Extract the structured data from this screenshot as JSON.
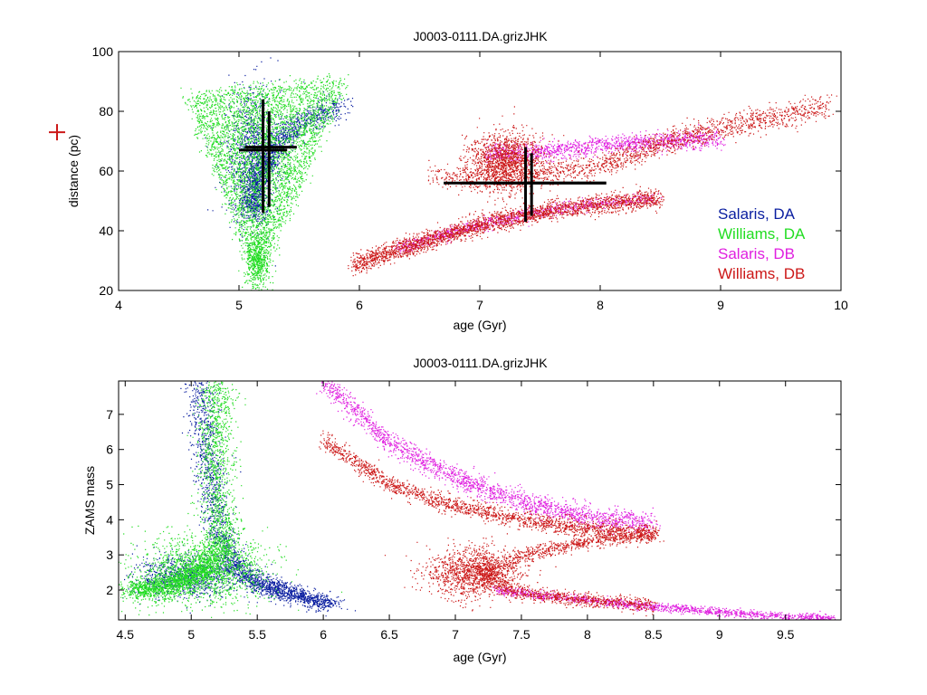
{
  "chart_data": [
    {
      "type": "scatter",
      "title": "J0003-0111.DA.grizJHK",
      "xlabel": "age (Gyr)",
      "ylabel": "distance (pc)",
      "xlim": [
        4,
        10
      ],
      "ylim": [
        20,
        100
      ],
      "xticks": [
        4,
        5,
        6,
        7,
        8,
        9,
        10
      ],
      "yticks": [
        20,
        40,
        60,
        80,
        100
      ],
      "grid": false,
      "legend_position": "bottom-right",
      "series": [
        {
          "name": "Salaris, DA",
          "color": "#0a1ea0",
          "clouds": [
            {
              "kind": "path",
              "pts": [
                [
                  5.1,
                  45
                ],
                [
                  5.15,
                  58
                ],
                [
                  5.3,
                  70
                ],
                [
                  5.55,
                  77
                ],
                [
                  5.85,
                  82
                ]
              ],
              "spread": [
                0.06,
                2.0
              ],
              "n": 1600
            },
            {
              "kind": "blob",
              "cx": 5.1,
              "cy": 66,
              "sx": 0.12,
              "sy": 11,
              "n": 900
            }
          ]
        },
        {
          "name": "Williams, DA",
          "color": "#22dd22",
          "clouds": [
            {
              "kind": "fan",
              "tip": [
                5.15,
                23
              ],
              "left": [
                4.55,
                86
              ],
              "right": [
                5.9,
                91
              ],
              "n": 4200
            },
            {
              "kind": "blob",
              "cx": 5.15,
              "cy": 30,
              "sx": 0.05,
              "sy": 5,
              "n": 500
            }
          ]
        },
        {
          "name": "Salaris, DB",
          "color": "#e020e0",
          "clouds": [
            {
              "kind": "path",
              "pts": [
                [
                  7.05,
                  66
                ],
                [
                  7.5,
                  66.5
                ],
                [
                  8.0,
                  68.5
                ],
                [
                  8.5,
                  70
                ],
                [
                  9.0,
                  71
                ]
              ],
              "spread": [
                0.03,
                1.5
              ],
              "n": 1300
            },
            {
              "kind": "path",
              "pts": [
                [
                  6.3,
                  34
                ],
                [
                  6.8,
                  40
                ],
                [
                  7.3,
                  45
                ],
                [
                  7.9,
                  49
                ],
                [
                  8.45,
                  51
                ]
              ],
              "spread": [
                0.03,
                1.0
              ],
              "n": 900
            }
          ]
        },
        {
          "name": "Williams, DB",
          "color": "#cc1818",
          "clouds": [
            {
              "kind": "path",
              "pts": [
                [
                  5.95,
                  29
                ],
                [
                  6.4,
                  35
                ],
                [
                  7.0,
                  42
                ],
                [
                  7.6,
                  47
                ],
                [
                  8.2,
                  50
                ],
                [
                  8.5,
                  51
                ]
              ],
              "spread": [
                0.03,
                1.6
              ],
              "n": 2600
            },
            {
              "kind": "path",
              "pts": [
                [
                  6.6,
                  58
                ],
                [
                  7.3,
                  58
                ],
                [
                  8.0,
                  62
                ],
                [
                  8.7,
                  72
                ],
                [
                  9.3,
                  77
                ],
                [
                  9.9,
                  82
                ]
              ],
              "spread": [
                0.03,
                2.0
              ],
              "n": 1700
            },
            {
              "kind": "blob",
              "cx": 7.2,
              "cy": 63,
              "sx": 0.15,
              "sy": 5,
              "n": 1400
            }
          ]
        }
      ],
      "error_crosses": [
        {
          "x": 5.2,
          "y": 67,
          "xerr": [
            5.0,
            5.4
          ],
          "yerr": [
            46,
            84
          ]
        },
        {
          "x": 5.25,
          "y": 68,
          "xerr": [
            5.05,
            5.48
          ],
          "yerr": [
            48,
            80
          ]
        },
        {
          "x": 7.38,
          "y": 56,
          "xerr": [
            6.7,
            8.05
          ],
          "yerr": [
            43,
            68
          ]
        },
        {
          "x": 7.43,
          "y": 56,
          "xerr": [
            6.85,
            8.05
          ],
          "yerr": [
            45,
            66
          ]
        }
      ],
      "reference_marker": {
        "color": "#cc1818",
        "y": 73
      }
    },
    {
      "type": "scatter",
      "title": "J0003-0111.DA.grizJHK",
      "xlabel": "age (Gyr)",
      "ylabel": "ZAMS mass",
      "xlim": [
        4.45,
        9.92
      ],
      "ylim": [
        1.15,
        7.95
      ],
      "xticks": [
        4.5,
        5,
        5.5,
        6,
        6.5,
        7,
        7.5,
        8,
        8.5,
        9,
        9.5
      ],
      "yticks": [
        2,
        3,
        4,
        5,
        6,
        7
      ],
      "grid": false,
      "series": [
        {
          "name": "Salaris, DA",
          "color": "#0a1ea0",
          "clouds": [
            {
              "kind": "path",
              "pts": [
                [
                  5.05,
                  7.9
                ],
                [
                  5.1,
                  6.5
                ],
                [
                  5.15,
                  5.0
                ],
                [
                  5.2,
                  3.8
                ],
                [
                  5.3,
                  2.8
                ],
                [
                  5.5,
                  2.2
                ],
                [
                  5.8,
                  1.85
                ],
                [
                  6.05,
                  1.6
                ]
              ],
              "spread": [
                0.06,
                0.12
              ],
              "n": 2200
            },
            {
              "kind": "blob",
              "cx": 4.95,
              "cy": 2.4,
              "sx": 0.2,
              "sy": 0.3,
              "n": 900
            }
          ]
        },
        {
          "name": "Williams, DA",
          "color": "#22dd22",
          "clouds": [
            {
              "kind": "path",
              "pts": [
                [
                  5.2,
                  7.9
                ],
                [
                  5.18,
                  6.0
                ],
                [
                  5.2,
                  4.5
                ],
                [
                  5.25,
                  3.5
                ],
                [
                  5.1,
                  2.6
                ],
                [
                  4.8,
                  2.1
                ],
                [
                  4.55,
                  2.0
                ]
              ],
              "spread": [
                0.07,
                0.15
              ],
              "n": 2600
            },
            {
              "kind": "blob",
              "cx": 5.1,
              "cy": 2.6,
              "sx": 0.25,
              "sy": 0.5,
              "n": 1500
            }
          ]
        },
        {
          "name": "Salaris, DB",
          "color": "#e020e0",
          "clouds": [
            {
              "kind": "path",
              "pts": [
                [
                  6.0,
                  7.95
                ],
                [
                  6.5,
                  6.2
                ],
                [
                  7.0,
                  5.2
                ],
                [
                  7.5,
                  4.5
                ],
                [
                  8.0,
                  4.1
                ],
                [
                  8.5,
                  3.9
                ]
              ],
              "spread": [
                0.03,
                0.16
              ],
              "n": 2000
            },
            {
              "kind": "path",
              "pts": [
                [
                  7.3,
                  2.0
                ],
                [
                  7.8,
                  1.8
                ],
                [
                  8.3,
                  1.6
                ],
                [
                  8.8,
                  1.45
                ],
                [
                  9.3,
                  1.3
                ],
                [
                  9.85,
                  1.2
                ]
              ],
              "spread": [
                0.03,
                0.06
              ],
              "n": 1400
            }
          ]
        },
        {
          "name": "Williams, DB",
          "color": "#cc1818",
          "clouds": [
            {
              "kind": "path",
              "pts": [
                [
                  6.0,
                  6.3
                ],
                [
                  6.5,
                  5.0
                ],
                [
                  7.0,
                  4.4
                ],
                [
                  7.5,
                  4.0
                ],
                [
                  8.0,
                  3.75
                ],
                [
                  8.5,
                  3.6
                ]
              ],
              "spread": [
                0.03,
                0.12
              ],
              "n": 1800
            },
            {
              "kind": "path",
              "pts": [
                [
                  8.5,
                  3.6
                ],
                [
                  8.0,
                  3.4
                ],
                [
                  7.5,
                  3.0
                ],
                [
                  7.2,
                  2.5
                ],
                [
                  7.4,
                  2.0
                ],
                [
                  7.9,
                  1.75
                ],
                [
                  8.5,
                  1.55
                ]
              ],
              "spread": [
                0.03,
                0.1
              ],
              "n": 1500
            },
            {
              "kind": "blob",
              "cx": 7.15,
              "cy": 2.5,
              "sx": 0.18,
              "sy": 0.35,
              "n": 1300
            }
          ]
        }
      ]
    }
  ]
}
